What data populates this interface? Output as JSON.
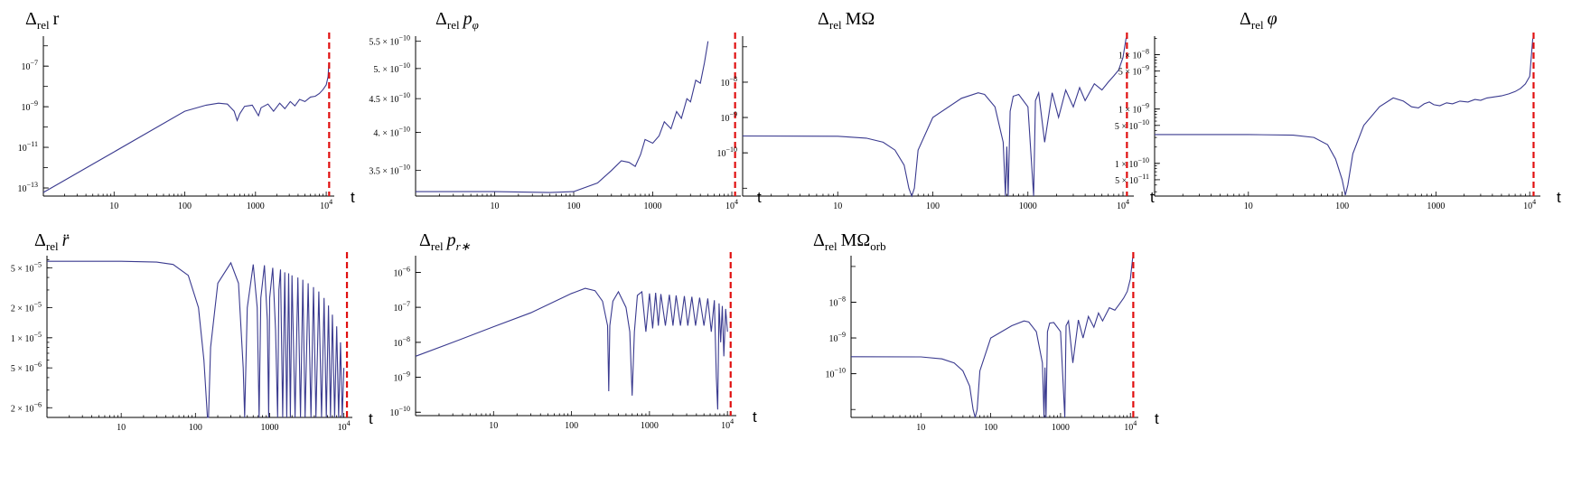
{
  "colors": {
    "curve": "#3a3a8f",
    "marker": "#e01010",
    "axes": "#000000"
  },
  "chart_data": [
    {
      "type": "line",
      "id": "dr",
      "title": {
        "delta": "Δ",
        "sub": "rel",
        "var": "r",
        "italic": false
      },
      "xlabel": "t",
      "xscale": "log",
      "yscale": "log",
      "xlim": [
        1,
        13000
      ],
      "ylim": [
        4e-14,
        3e-06
      ],
      "xticks": [
        {
          "v": 10,
          "label": "10"
        },
        {
          "v": 100,
          "label": "100"
        },
        {
          "v": 1000,
          "label": "1000"
        },
        {
          "v": 10000,
          "label": "10",
          "sup": "4"
        }
      ],
      "yticks": [
        {
          "v": 1e-13,
          "label": "10",
          "sup": "−13"
        },
        {
          "v": 1e-11,
          "label": "10",
          "sup": "−11"
        },
        {
          "v": 1e-09,
          "label": "10",
          "sup": "−9"
        },
        {
          "v": 1e-07,
          "label": "10",
          "sup": "−7"
        }
      ],
      "marker_x": 11000,
      "series": [
        {
          "x": [
            1,
            2,
            5,
            10,
            30,
            100,
            200,
            300,
            400,
            500,
            550,
            600,
            700,
            900,
            1100,
            1200,
            1500,
            1800,
            2200,
            2600,
            3100,
            3600,
            4200,
            5000,
            6000,
            7000,
            8000,
            9000,
            10000,
            10600,
            10900
          ],
          "y": [
            6e-14,
            2.4e-13,
            1.5e-12,
            6e-12,
            5.4e-11,
            6e-10,
            1.2e-09,
            1.5e-09,
            1.35e-09,
            6e-10,
            2.1e-10,
            4.5e-10,
            1.05e-09,
            1.2e-09,
            3.6e-10,
            9e-10,
            1.35e-09,
            6e-10,
            1.5e-09,
            8e-10,
            1.8e-09,
            1.1e-09,
            2.3e-09,
            1.8e-09,
            3e-09,
            3.3e-09,
            4.5e-09,
            7e-09,
            1.2e-08,
            3e-08,
            1.3e-07
          ]
        }
      ]
    },
    {
      "type": "line",
      "id": "dpphi",
      "title": {
        "delta": "Δ",
        "sub": "rel",
        "var": "p",
        "varsub": "φ",
        "italic": true
      },
      "xlabel": "t",
      "xscale": "log",
      "yscale": "log",
      "xlim": [
        1,
        13000
      ],
      "ylim": [
        3.2e-10,
        5.6e-10
      ],
      "xticks": [
        {
          "v": 10,
          "label": "10"
        },
        {
          "v": 100,
          "label": "100"
        },
        {
          "v": 1000,
          "label": "1000"
        },
        {
          "v": 10000,
          "label": "10",
          "sup": "4"
        }
      ],
      "yticks": [
        {
          "v": 3.5e-10,
          "label": "3.5 × 10",
          "sup": "−10"
        },
        {
          "v": 4e-10,
          "label": "4. × 10",
          "sup": "−10"
        },
        {
          "v": 4.5e-10,
          "label": "4.5 × 10",
          "sup": "−10"
        },
        {
          "v": 5e-10,
          "label": "5. × 10",
          "sup": "−10"
        },
        {
          "v": 5.5e-10,
          "label": "5.5 × 10",
          "sup": "−10"
        }
      ],
      "marker_x": 11000,
      "series": [
        {
          "x": [
            1,
            10,
            50,
            100,
            200,
            300,
            400,
            500,
            600,
            700,
            800,
            1000,
            1200,
            1400,
            1700,
            2000,
            2300,
            2700,
            3000,
            3500,
            4000,
            4500,
            5000
          ],
          "y": [
            3.25e-10,
            3.25e-10,
            3.24e-10,
            3.25e-10,
            3.35e-10,
            3.5e-10,
            3.62e-10,
            3.6e-10,
            3.55e-10,
            3.7e-10,
            3.9e-10,
            3.85e-10,
            3.95e-10,
            4.15e-10,
            4.05e-10,
            4.3e-10,
            4.2e-10,
            4.5e-10,
            4.45e-10,
            4.8e-10,
            4.75e-10,
            5.1e-10,
            5.5e-10
          ]
        }
      ]
    },
    {
      "type": "line",
      "id": "dMOmega",
      "title": {
        "delta": "Δ",
        "sub": "rel",
        "var": "MΩ",
        "italic": false
      },
      "xlabel": "t",
      "xscale": "log",
      "yscale": "log",
      "xlim": [
        1,
        13000
      ],
      "ylim": [
        6e-12,
        2e-07
      ],
      "xticks": [
        {
          "v": 10,
          "label": "10"
        },
        {
          "v": 100,
          "label": "100"
        },
        {
          "v": 1000,
          "label": "1000"
        },
        {
          "v": 10000,
          "label": "10",
          "sup": "4"
        }
      ],
      "yticks": [
        {
          "v": 1e-10,
          "label": "10",
          "sup": "−10"
        },
        {
          "v": 1e-09,
          "label": "10",
          "sup": "−9"
        },
        {
          "v": 1e-08,
          "label": "10",
          "sup": "−8"
        }
      ],
      "marker_x": 11000,
      "series": [
        {
          "x": [
            1,
            10,
            20,
            30,
            40,
            50,
            56,
            60,
            64,
            70,
            100,
            200,
            300,
            350,
            450,
            550,
            580,
            600,
            620,
            650,
            700,
            800,
            1000,
            1150,
            1200,
            1300,
            1500,
            1800,
            2100,
            2500,
            3000,
            3500,
            4000,
            5000,
            6000,
            7000,
            8000,
            9000,
            10000,
            10800
          ],
          "y": [
            3e-10,
            2.95e-10,
            2.6e-10,
            2e-10,
            1.2e-10,
            4.5e-11,
            1e-11,
            6e-12,
            1e-11,
            1.2e-10,
            1e-09,
            3.5e-09,
            5e-09,
            4.5e-09,
            2e-09,
            2e-10,
            6e-12,
            1.5e-10,
            6e-12,
            1.5e-09,
            4e-09,
            4.5e-09,
            2e-09,
            6e-12,
            3e-09,
            5e-09,
            2e-10,
            5e-09,
            1e-09,
            6e-09,
            2e-09,
            7e-09,
            3e-09,
            9e-09,
            6e-09,
            1e-08,
            1.5e-08,
            2.2e-08,
            5e-08,
            1.8e-07
          ]
        }
      ]
    },
    {
      "type": "line",
      "id": "dphi",
      "title": {
        "delta": "Δ",
        "sub": "rel",
        "var": "φ",
        "italic": true
      },
      "xlabel": "t",
      "xscale": "log",
      "yscale": "log",
      "xlim": [
        1,
        13000
      ],
      "ylim": [
        2.5e-11,
        2.2e-08
      ],
      "xticks": [
        {
          "v": 10,
          "label": "10"
        },
        {
          "v": 100,
          "label": "100"
        },
        {
          "v": 1000,
          "label": "1000"
        },
        {
          "v": 10000,
          "label": "10",
          "sup": "4"
        }
      ],
      "yticks": [
        {
          "v": 5e-11,
          "label": "5 × 10",
          "sup": "−11"
        },
        {
          "v": 1e-10,
          "label": "1 × 10",
          "sup": "−10"
        },
        {
          "v": 5e-10,
          "label": "5 × 10",
          "sup": "−10"
        },
        {
          "v": 1e-09,
          "label": "1 × 10",
          "sup": "−9"
        },
        {
          "v": 5e-09,
          "label": "5 × 10",
          "sup": "−9"
        },
        {
          "v": 1e-08,
          "label": "1 × 10",
          "sup": "−8"
        }
      ],
      "marker_x": 11000,
      "series": [
        {
          "x": [
            1,
            10,
            30,
            50,
            70,
            85,
            100,
            108,
            115,
            130,
            170,
            250,
            350,
            450,
            550,
            650,
            750,
            850,
            950,
            1100,
            1300,
            1500,
            1800,
            2200,
            2600,
            3000,
            3500,
            4000,
            5000,
            6000,
            7000,
            8000,
            9000,
            10000,
            10800
          ],
          "y": [
            3.4e-10,
            3.4e-10,
            3.3e-10,
            3e-10,
            2.2e-10,
            1.2e-10,
            5e-11,
            2.6e-11,
            4e-11,
            1.5e-10,
            5e-10,
            1.1e-09,
            1.6e-09,
            1.4e-09,
            1.1e-09,
            1.05e-09,
            1.25e-09,
            1.35e-09,
            1.2e-09,
            1.15e-09,
            1.3e-09,
            1.25e-09,
            1.4e-09,
            1.35e-09,
            1.5e-09,
            1.45e-09,
            1.6e-09,
            1.65e-09,
            1.75e-09,
            1.9e-09,
            2.1e-09,
            2.4e-09,
            2.9e-09,
            4e-09,
            2e-08
          ]
        }
      ]
    },
    {
      "type": "line",
      "id": "drddot",
      "title": {
        "delta": "Δ",
        "sub": "rel",
        "var": "r̈",
        "italic": true
      },
      "xlabel": "t",
      "xscale": "log",
      "yscale": "log",
      "xlim": [
        1,
        13000
      ],
      "ylim": [
        1.6e-06,
        6.6e-05
      ],
      "xticks": [
        {
          "v": 10,
          "label": "10"
        },
        {
          "v": 100,
          "label": "100"
        },
        {
          "v": 1000,
          "label": "1000"
        },
        {
          "v": 10000,
          "label": "10",
          "sup": "4"
        }
      ],
      "yticks": [
        {
          "v": 2e-06,
          "label": "2 × 10",
          "sup": "−6"
        },
        {
          "v": 5e-06,
          "label": "5 × 10",
          "sup": "−6"
        },
        {
          "v": 1e-05,
          "label": "1 × 10",
          "sup": "−5"
        },
        {
          "v": 2e-05,
          "label": "2 × 10",
          "sup": "−5"
        },
        {
          "v": 5e-05,
          "label": "5 × 10",
          "sup": "−5"
        }
      ],
      "marker_x": 11000,
      "series": [
        {
          "x": [
            1,
            10,
            30,
            50,
            80,
            110,
            130,
            145,
            150,
            160,
            200,
            300,
            380,
            440,
            460,
            500,
            600,
            680,
            720,
            760,
            850,
            930,
            970,
            1000,
            1100,
            1200,
            1280,
            1330,
            1400,
            1500,
            1600,
            1700,
            1800,
            1900,
            2000,
            2200,
            2400,
            2600,
            2800,
            3000,
            3300,
            3600,
            3900,
            4200,
            4600,
            5000,
            5400,
            5800,
            6200,
            6600,
            7000,
            7500,
            8000,
            8500,
            9000,
            9500,
            10000
          ],
          "y": [
            5.8e-05,
            5.8e-05,
            5.7e-05,
            5.4e-05,
            4.2e-05,
            2e-05,
            6e-06,
            1.6e-06,
            1.6e-06,
            8e-06,
            3.5e-05,
            5.6e-05,
            3.5e-05,
            5e-06,
            1.6e-06,
            2e-05,
            5.4e-05,
            2e-05,
            1.6e-06,
            2.5e-05,
            5.3e-05,
            1.5e-05,
            1.6e-06,
            2.5e-05,
            5e-05,
            1.2e-05,
            1.6e-06,
            3e-05,
            4.8e-05,
            1.6e-06,
            4.5e-05,
            1.6e-06,
            4.4e-05,
            1.6e-06,
            4.2e-05,
            1.6e-06,
            4e-05,
            1.6e-06,
            3.8e-05,
            1.6e-06,
            3.5e-05,
            1.6e-06,
            3.2e-05,
            1.6e-06,
            2.9e-05,
            1.6e-06,
            2.5e-05,
            1.6e-06,
            2.1e-05,
            1.6e-06,
            1.7e-05,
            1.6e-06,
            1.3e-05,
            1.6e-06,
            9e-06,
            1.6e-06,
            5e-06
          ]
        }
      ]
    },
    {
      "type": "line",
      "id": "dprstar",
      "title": {
        "delta": "Δ",
        "sub": "rel",
        "var": "p",
        "varsub": "r∗",
        "italic": true
      },
      "xlabel": "t",
      "xscale": "log",
      "yscale": "log",
      "xlim": [
        1,
        13000
      ],
      "ylim": [
        8e-11,
        3e-06
      ],
      "xticks": [
        {
          "v": 10,
          "label": "10"
        },
        {
          "v": 100,
          "label": "100"
        },
        {
          "v": 1000,
          "label": "1000"
        },
        {
          "v": 10000,
          "label": "10",
          "sup": "4"
        }
      ],
      "yticks": [
        {
          "v": 1e-10,
          "label": "10",
          "sup": "−10"
        },
        {
          "v": 1e-09,
          "label": "10",
          "sup": "−9"
        },
        {
          "v": 1e-08,
          "label": "10",
          "sup": "−8"
        },
        {
          "v": 1e-07,
          "label": "10",
          "sup": "−7"
        },
        {
          "v": 1e-06,
          "label": "10",
          "sup": "−6"
        }
      ],
      "marker_x": 11000,
      "series": [
        {
          "x": [
            1,
            3,
            10,
            30,
            100,
            150,
            200,
            250,
            290,
            300,
            310,
            340,
            400,
            500,
            560,
            600,
            640,
            700,
            800,
            900,
            1000,
            1100,
            1200,
            1300,
            1400,
            1600,
            1800,
            2000,
            2200,
            2500,
            2800,
            3100,
            3500,
            3900,
            4400,
            5000,
            5600,
            6200,
            6800,
            7200,
            7500,
            7800,
            8200,
            8600,
            9000,
            9500,
            10000
          ],
          "y": [
            4e-09,
            1e-08,
            2.8e-08,
            7e-08,
            2.5e-07,
            3.5e-07,
            3e-07,
            1.5e-07,
            3e-08,
            4e-10,
            3e-08,
            1.5e-07,
            2.8e-07,
            1e-07,
            2e-08,
            3e-10,
            2e-08,
            2.2e-07,
            2.8e-07,
            2e-08,
            2.5e-07,
            2.5e-08,
            2.6e-07,
            3e-08,
            2.4e-07,
            3e-08,
            2.3e-07,
            3e-08,
            2.2e-07,
            3e-08,
            2.1e-07,
            3e-08,
            2e-07,
            3e-08,
            1.9e-07,
            3e-08,
            1.8e-07,
            2e-08,
            1.6e-07,
            1e-09,
            1.2e-10,
            1.3e-07,
            1e-08,
            1.1e-07,
            4e-09,
            9e-08,
            2e-08
          ]
        }
      ]
    },
    {
      "type": "line",
      "id": "dMOmegaorb",
      "title": {
        "delta": "Δ",
        "sub": "rel",
        "var": "MΩ",
        "varsub": "orb",
        "italic": false
      },
      "xlabel": "t",
      "xscale": "log",
      "yscale": "log",
      "xlim": [
        1,
        13000
      ],
      "ylim": [
        6e-12,
        2e-07
      ],
      "xticks": [
        {
          "v": 10,
          "label": "10"
        },
        {
          "v": 100,
          "label": "100"
        },
        {
          "v": 1000,
          "label": "1000"
        },
        {
          "v": 10000,
          "label": "10",
          "sup": "4"
        }
      ],
      "yticks": [
        {
          "v": 1e-10,
          "label": "10",
          "sup": "−10"
        },
        {
          "v": 1e-09,
          "label": "10",
          "sup": "−9"
        },
        {
          "v": 1e-08,
          "label": "10",
          "sup": "−8"
        }
      ],
      "marker_x": 11000,
      "series": [
        {
          "x": [
            1,
            10,
            20,
            30,
            40,
            50,
            56,
            60,
            64,
            70,
            100,
            200,
            300,
            350,
            450,
            550,
            580,
            600,
            620,
            650,
            700,
            800,
            1000,
            1150,
            1200,
            1300,
            1500,
            1800,
            2100,
            2500,
            3000,
            3500,
            4000,
            5000,
            6000,
            7000,
            8000,
            9000,
            10000,
            10800
          ],
          "y": [
            3e-10,
            2.95e-10,
            2.6e-10,
            2e-10,
            1.2e-10,
            4.5e-11,
            1e-11,
            6e-12,
            1e-11,
            1.2e-10,
            1e-09,
            2.2e-09,
            3e-09,
            2.8e-09,
            1.5e-09,
            2e-10,
            6e-12,
            1.5e-10,
            6e-12,
            1.5e-09,
            2.6e-09,
            2.7e-09,
            1.5e-09,
            6e-12,
            2.2e-09,
            3e-09,
            2e-10,
            3.2e-09,
            1e-09,
            4e-09,
            2e-09,
            5e-09,
            3e-09,
            7e-09,
            6e-09,
            9e-09,
            1.3e-08,
            2e-08,
            4.5e-08,
            1.8e-07
          ]
        }
      ]
    }
  ]
}
